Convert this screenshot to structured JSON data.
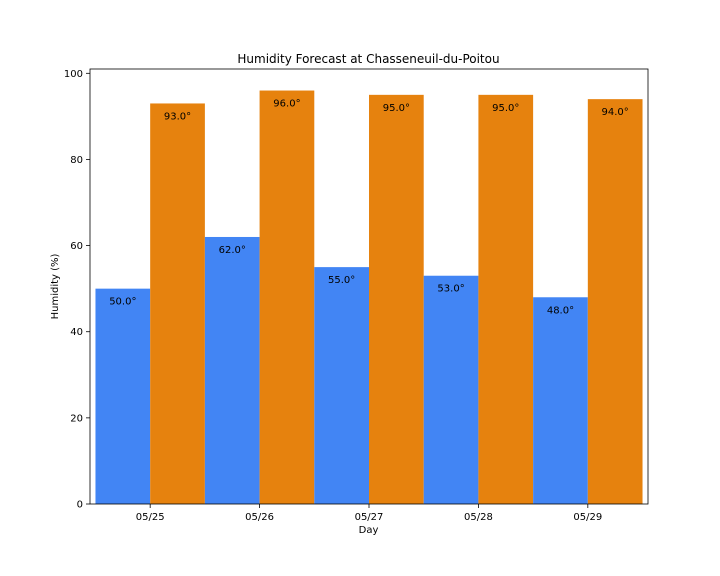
{
  "chart_data": {
    "type": "bar",
    "title": "Humidity Forecast at Chasseneuil-du-Poitou",
    "xlabel": "Day",
    "ylabel": "Humidity (%)",
    "categories": [
      "05/25",
      "05/26",
      "05/27",
      "05/28",
      "05/29"
    ],
    "series": [
      {
        "values": [
          50,
          62,
          55,
          53,
          48
        ],
        "color": "#4285f4",
        "labels": [
          "50.0°",
          "62.0°",
          "55.0°",
          "53.0°",
          "48.0°"
        ]
      },
      {
        "values": [
          93,
          96,
          95,
          95,
          94
        ],
        "color": "#e6820e",
        "labels": [
          "93.0°",
          "96.0°",
          "95.0°",
          "95.0°",
          "94.0°"
        ]
      }
    ],
    "ylim": [
      0,
      101
    ],
    "yticks": [
      0,
      20,
      40,
      60,
      80,
      100
    ],
    "grid": false,
    "legend": "none"
  }
}
